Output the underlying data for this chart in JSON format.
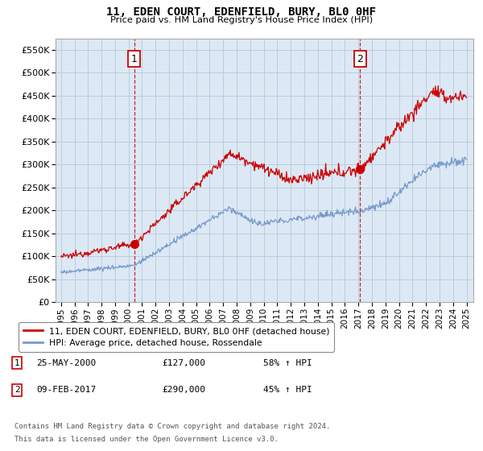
{
  "title": "11, EDEN COURT, EDENFIELD, BURY, BL0 0HF",
  "subtitle": "Price paid vs. HM Land Registry's House Price Index (HPI)",
  "legend_line1": "11, EDEN COURT, EDENFIELD, BURY, BL0 0HF (detached house)",
  "legend_line2": "HPI: Average price, detached house, Rossendale",
  "annotation1_date": "25-MAY-2000",
  "annotation1_price": "£127,000",
  "annotation1_hpi": "58% ↑ HPI",
  "annotation2_date": "09-FEB-2017",
  "annotation2_price": "£290,000",
  "annotation2_hpi": "45% ↑ HPI",
  "footnote_line1": "Contains HM Land Registry data © Crown copyright and database right 2024.",
  "footnote_line2": "This data is licensed under the Open Government Licence v3.0.",
  "ylim": [
    0,
    575000
  ],
  "yticks": [
    0,
    50000,
    100000,
    150000,
    200000,
    250000,
    300000,
    350000,
    400000,
    450000,
    500000,
    550000
  ],
  "red_color": "#cc0000",
  "blue_color": "#7799cc",
  "chart_bg_color": "#dce9f5",
  "background_color": "#ffffff",
  "grid_color": "#bbccdd",
  "sale1_x": 2000.42,
  "sale1_y": 127000,
  "sale2_x": 2017.12,
  "sale2_y": 290000,
  "xmin": 1995,
  "xmax": 2025
}
